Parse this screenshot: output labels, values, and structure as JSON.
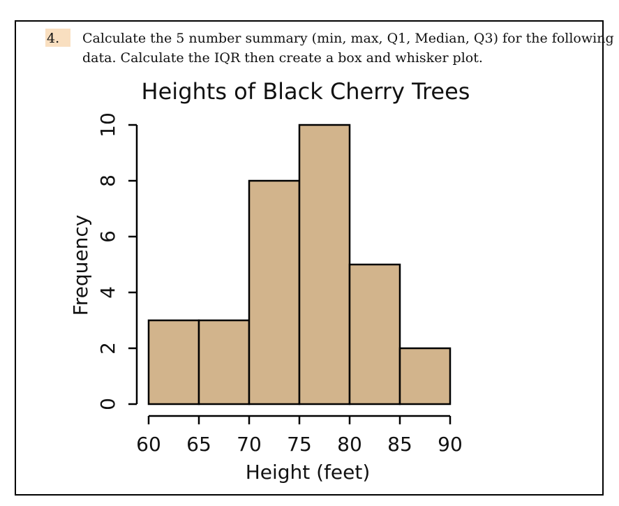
{
  "question": {
    "number": "4.",
    "line1": "Calculate the 5 number summary (min, max, Q1, Median, Q3)  for the following",
    "line2": "data. Calculate the IQR  then create a box and whisker plot."
  },
  "chart_data": {
    "type": "bar",
    "title": "Heights of Black Cherry Trees",
    "xlabel": "Height (feet)",
    "ylabel": "Frequency",
    "bin_edges": [
      60,
      65,
      70,
      75,
      80,
      85,
      90
    ],
    "values": [
      3,
      3,
      8,
      10,
      5,
      2
    ],
    "x_ticks": [
      60,
      65,
      70,
      75,
      80,
      85,
      90
    ],
    "y_ticks": [
      0,
      2,
      4,
      6,
      8,
      10
    ],
    "xlim": [
      60,
      90
    ],
    "ylim": [
      0,
      10
    ],
    "bar_color": "#d2b48c",
    "grid": false
  }
}
